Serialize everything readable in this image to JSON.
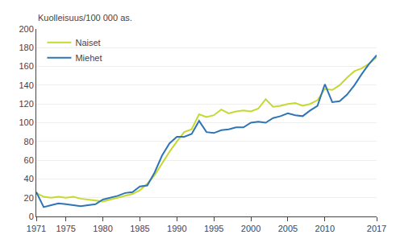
{
  "chart_data": {
    "type": "line",
    "ylabel": "Kuolleisuus/100 000 as.",
    "x": [
      1971,
      1972,
      1973,
      1974,
      1975,
      1976,
      1977,
      1978,
      1979,
      1980,
      1981,
      1982,
      1983,
      1984,
      1985,
      1986,
      1987,
      1988,
      1989,
      1990,
      1991,
      1992,
      1993,
      1994,
      1995,
      1996,
      1997,
      1998,
      1999,
      2000,
      2001,
      2002,
      2003,
      2004,
      2005,
      2006,
      2007,
      2008,
      2009,
      2010,
      2011,
      2012,
      2013,
      2014,
      2015,
      2016,
      2017
    ],
    "series": [
      {
        "name": "Naiset",
        "color": "#c5d930",
        "values": [
          25,
          21,
          20,
          21,
          20,
          21,
          19,
          18,
          17,
          16,
          18,
          20,
          22,
          24,
          28,
          35,
          44,
          57,
          69,
          80,
          90,
          93,
          109,
          106,
          108,
          114,
          110,
          112,
          113,
          112,
          115,
          125,
          117,
          118,
          120,
          121,
          118,
          120,
          124,
          136,
          135,
          140,
          148,
          155,
          158,
          163,
          170
        ]
      },
      {
        "name": "Miehet",
        "color": "#2e75b6",
        "values": [
          26,
          10,
          12,
          14,
          13,
          12,
          11,
          12,
          13,
          18,
          20,
          22,
          25,
          26,
          32,
          33,
          47,
          65,
          78,
          85,
          85,
          88,
          102,
          90,
          89,
          92,
          93,
          95,
          95,
          100,
          101,
          100,
          105,
          107,
          110,
          108,
          107,
          113,
          118,
          141,
          122,
          123,
          130,
          140,
          152,
          163,
          172
        ]
      }
    ],
    "xlim": [
      1971,
      2017
    ],
    "xticks": [
      1971,
      1975,
      1980,
      1985,
      1990,
      1995,
      2000,
      2005,
      2010,
      2017
    ],
    "ylim": [
      0,
      200
    ],
    "yticks": [
      0,
      20,
      40,
      60,
      80,
      100,
      120,
      140,
      160,
      180,
      200
    ],
    "grid": "y",
    "legend": "upper left"
  }
}
